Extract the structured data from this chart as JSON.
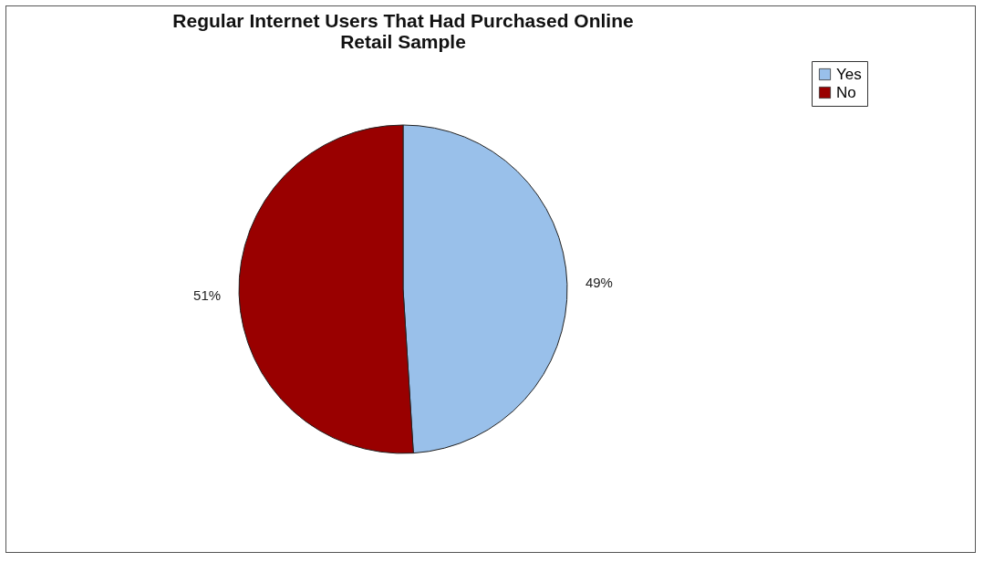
{
  "chart_data": {
    "type": "pie",
    "title": [
      "Regular Internet Users That Had Purchased Online",
      "Retail Sample"
    ],
    "categories": [
      "Yes",
      "No"
    ],
    "values": [
      49,
      51
    ],
    "colors": [
      "#99c0ea",
      "#990000"
    ],
    "value_labels": [
      "49%",
      "51%"
    ],
    "legend": "right"
  }
}
